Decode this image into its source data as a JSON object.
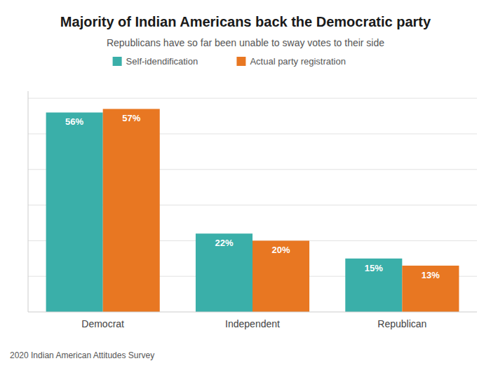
{
  "chart_data": {
    "type": "bar",
    "title": "Majority of Indian Americans back the Democratic party",
    "subtitle": "Republicans have so far been unable to sway votes to their side",
    "source": "2020 Indian American Attitudes Survey",
    "categories": [
      "Democrat",
      "Independent",
      "Republican"
    ],
    "series": [
      {
        "name": "Self-idendification",
        "color": "#3AAFA9",
        "values": [
          56,
          22,
          15
        ],
        "value_labels": [
          "56%",
          "22%",
          "15%"
        ]
      },
      {
        "name": "Actual party registration",
        "color": "#E87722",
        "values": [
          57,
          20,
          13
        ],
        "value_labels": [
          "57%",
          "20%",
          "13%"
        ]
      }
    ],
    "ylim": [
      0,
      62
    ],
    "yticks": [
      10,
      20,
      30,
      40,
      50,
      60
    ],
    "grid": true,
    "tick_labels": "x",
    "data_labels": true,
    "legend": "top"
  }
}
